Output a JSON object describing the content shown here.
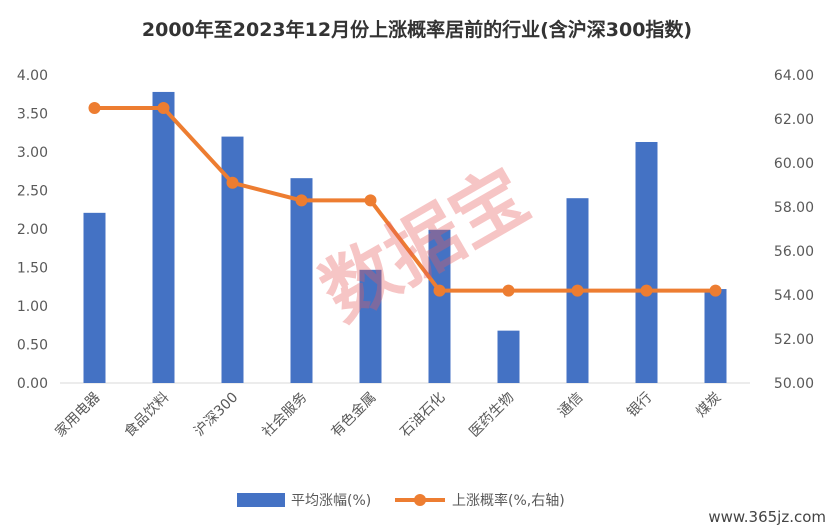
{
  "chart_data": {
    "type": "bar",
    "title": "2000年至2023年12月份上涨概率居前的行业(含沪深300指数)",
    "categories": [
      "家用电器",
      "食品饮料",
      "沪深300",
      "社会服务",
      "有色金属",
      "石油石化",
      "医药生物",
      "通信",
      "银行",
      "煤炭"
    ],
    "series": [
      {
        "name": "平均涨幅(%)",
        "type": "bar",
        "axis": "left",
        "color": "#4472c4",
        "values": [
          2.21,
          3.78,
          3.2,
          2.66,
          1.47,
          1.99,
          0.68,
          2.4,
          3.13,
          1.22
        ]
      },
      {
        "name": "上涨概率(%,右轴)",
        "type": "line",
        "axis": "right",
        "color": "#ed7d31",
        "values": [
          62.5,
          62.5,
          59.1,
          58.3,
          58.3,
          54.2,
          54.2,
          54.2,
          54.2,
          54.2
        ]
      }
    ],
    "y_left": {
      "ylim": [
        0,
        4
      ],
      "ticks": [
        "0.00",
        "0.50",
        "1.00",
        "1.50",
        "2.00",
        "2.50",
        "3.00",
        "3.50",
        "4.00"
      ]
    },
    "y_right": {
      "ylim": [
        50,
        64
      ],
      "ticks": [
        "50.00",
        "52.00",
        "54.00",
        "56.00",
        "58.00",
        "60.00",
        "62.00",
        "64.00"
      ]
    },
    "grid": false,
    "legend_position": "bottom"
  },
  "watermark": "数据宝",
  "site_mark": "www.365jz.com"
}
